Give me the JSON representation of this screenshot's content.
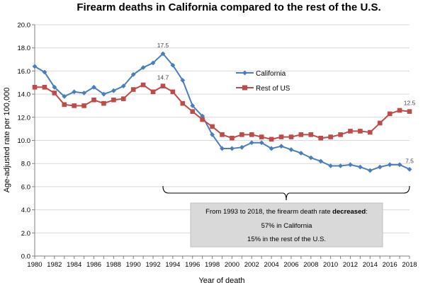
{
  "chart_data": {
    "type": "line",
    "title": "Firearm deaths in California compared to the rest of the U.S.",
    "xlabel": "Year of death",
    "ylabel": "Age-adjusted rate per 100,000",
    "ylim": [
      0,
      20
    ],
    "yticks": [
      "0.0",
      "2.0",
      "4.0",
      "6.0",
      "8.0",
      "10.0",
      "12.0",
      "14.0",
      "16.0",
      "18.0",
      "20.0"
    ],
    "xlim": [
      1980,
      2018
    ],
    "xticks": [
      "1980",
      "1982",
      "1984",
      "1986",
      "1988",
      "1990",
      "1992",
      "1994",
      "1996",
      "1998",
      "2000",
      "2002",
      "2004",
      "2006",
      "2008",
      "2010",
      "2012",
      "2014",
      "2016",
      "2018"
    ],
    "grid": true,
    "legend_position": "center-right",
    "x": [
      1980,
      1981,
      1982,
      1983,
      1984,
      1985,
      1986,
      1987,
      1988,
      1989,
      1990,
      1991,
      1992,
      1993,
      1994,
      1995,
      1996,
      1997,
      1998,
      1999,
      2000,
      2001,
      2002,
      2003,
      2004,
      2005,
      2006,
      2007,
      2008,
      2009,
      2010,
      2011,
      2012,
      2013,
      2014,
      2015,
      2016,
      2017,
      2018
    ],
    "series": [
      {
        "name": "California",
        "color": "#4a7ebb",
        "marker": "diamond",
        "values": [
          16.4,
          15.9,
          14.6,
          13.8,
          14.2,
          14.1,
          14.6,
          14.0,
          14.3,
          14.7,
          15.7,
          16.3,
          16.7,
          17.5,
          16.5,
          15.2,
          13.0,
          12.1,
          10.5,
          9.3,
          9.3,
          9.4,
          9.8,
          9.8,
          9.3,
          9.5,
          9.2,
          8.9,
          8.5,
          8.2,
          7.8,
          7.8,
          7.9,
          7.7,
          7.4,
          7.7,
          7.9,
          7.9,
          7.5
        ]
      },
      {
        "name": "Rest of US",
        "color": "#be4b48",
        "marker": "square",
        "values": [
          14.6,
          14.6,
          14.1,
          13.1,
          13.0,
          13.0,
          13.5,
          13.2,
          13.5,
          13.6,
          14.4,
          14.8,
          14.2,
          14.7,
          14.2,
          13.2,
          12.5,
          11.8,
          11.2,
          10.5,
          10.2,
          10.5,
          10.5,
          10.3,
          10.1,
          10.3,
          10.3,
          10.5,
          10.5,
          10.2,
          10.3,
          10.5,
          10.8,
          10.8,
          10.7,
          11.5,
          12.3,
          12.6,
          12.5
        ]
      }
    ],
    "data_labels": [
      {
        "series": "California",
        "x": 1993,
        "text": "17.5"
      },
      {
        "series": "Rest of US",
        "x": 1993,
        "text": "14.7"
      },
      {
        "series": "Rest of US",
        "x": 2018,
        "text": "12.5"
      },
      {
        "series": "California",
        "x": 2018,
        "text": "7.5"
      }
    ],
    "annotation": {
      "bracket_from": 1993,
      "bracket_to": 2018,
      "line1_prefix": "From 1993 to 2018, the firearm death rate ",
      "line1_bold": "decreased",
      "line1_suffix": ":",
      "line2": "57% in California",
      "line3": "15% in the rest of the U.S."
    }
  }
}
